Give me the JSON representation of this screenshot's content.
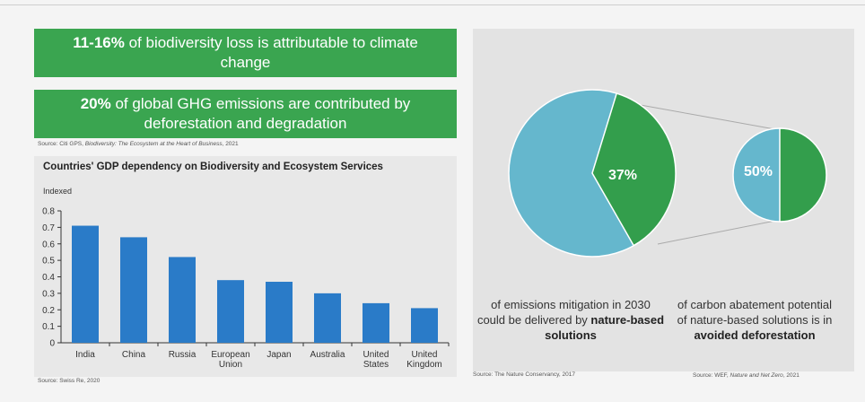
{
  "banners": [
    {
      "highlight": "11-16%",
      "text": " of biodiversity loss is attributable to climate change"
    },
    {
      "highlight": "20%",
      "text": " of global GHG emissions are contributed by deforestation and degradation"
    }
  ],
  "sources": {
    "top": {
      "prefix": "Source: Citi GPS, ",
      "italic": "Biodiversity: The Ecosystem at the Heart of Business",
      "suffix": ", 2021"
    },
    "chart": "Source: Swiss Re, 2020",
    "nature_conservancy": "Source: The Nature Conservancy, 2017",
    "wef": {
      "prefix": "Source: WEF, ",
      "italic": "Nature and Net Zero",
      "suffix": ", 2021"
    }
  },
  "chart_data": {
    "type": "bar",
    "title": "Countries' GDP dependency on Biodiversity and Ecosystem Services",
    "ylabel": "Indexed",
    "categories": [
      [
        "India"
      ],
      [
        "China"
      ],
      [
        "Russia"
      ],
      [
        "European",
        "Union"
      ],
      [
        "Japan"
      ],
      [
        "Australia"
      ],
      [
        "United",
        "States"
      ],
      [
        "United",
        "Kingdom"
      ]
    ],
    "values": [
      0.71,
      0.64,
      0.52,
      0.38,
      0.37,
      0.3,
      0.24,
      0.21
    ],
    "ylim": [
      0,
      0.8
    ],
    "yticks": [
      "0",
      "0.1",
      "0.2",
      "0.3",
      "0.4",
      "0.5",
      "0.6",
      "0.7",
      "0.8"
    ],
    "bar_color": "#2a7bc8",
    "grid": false
  },
  "pies": {
    "left": {
      "label": "37%",
      "value": 37,
      "main_color": "#65b7cd",
      "slice_color": "#339e4c"
    },
    "right": {
      "label": "50%",
      "value": 50,
      "main_color": "#65b7cd",
      "slice_color": "#339e4c"
    }
  },
  "captions": {
    "left": {
      "text": "of emissions mitigation in 2030 could be delivered by ",
      "bold": "nature-based solutions"
    },
    "right": {
      "text": "of carbon abatement potential of nature-based solutions is in ",
      "bold": "avoided deforestation"
    }
  }
}
